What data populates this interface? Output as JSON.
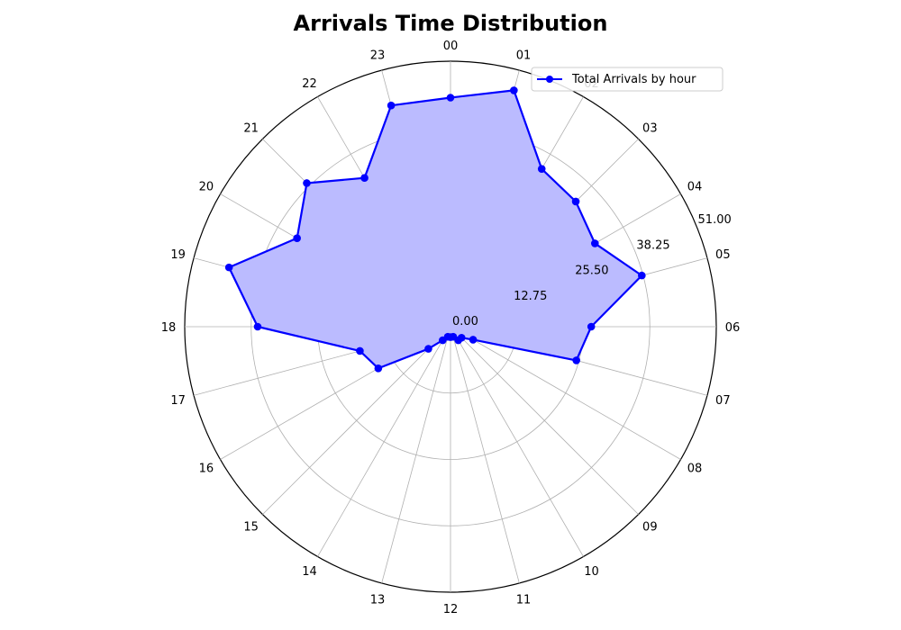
{
  "chart_data": {
    "type": "line",
    "projection": "polar",
    "title": "Arrivals Time Distribution",
    "direction": "clockwise",
    "zero_location": "top",
    "categories": [
      "00",
      "01",
      "02",
      "03",
      "04",
      "05",
      "06",
      "07",
      "08",
      "09",
      "10",
      "11",
      "12",
      "13",
      "14",
      "15",
      "16",
      "17",
      "18",
      "19",
      "20",
      "21",
      "22",
      "23"
    ],
    "series": [
      {
        "name": "Total Arrivals by hour",
        "color": "#0000ff",
        "fill_color": "#bbbbff",
        "values": [
          44,
          47,
          35,
          34,
          32,
          38,
          27,
          25,
          5,
          3,
          3,
          2,
          2,
          2,
          3,
          6,
          16,
          18,
          37,
          44,
          34,
          39,
          33,
          44
        ]
      }
    ],
    "rlim": [
      0,
      51
    ],
    "r_ticks": [
      "0.00",
      "12.75",
      "25.50",
      "38.25",
      "51.00"
    ],
    "r_tick_values": [
      0,
      12.75,
      25.5,
      38.25,
      51
    ],
    "grid": true,
    "legend": "top-right"
  }
}
